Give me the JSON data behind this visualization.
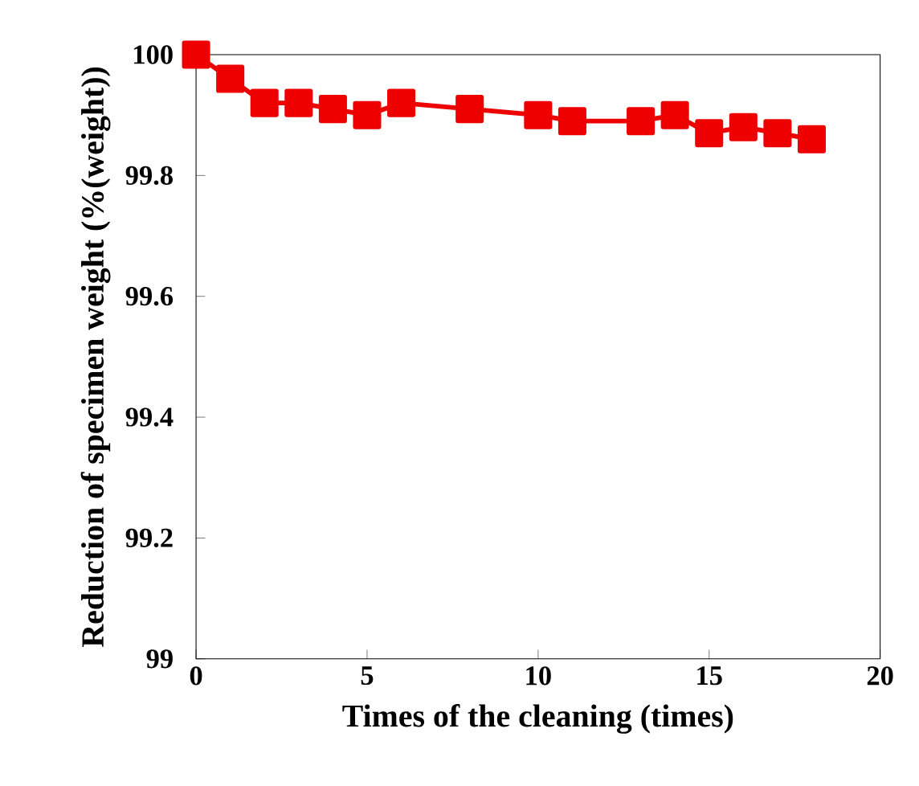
{
  "chart_data": {
    "type": "line",
    "xlabel": "Times of the cleaning (times)",
    "ylabel": "Reduction of specimen weight (%(weight))",
    "x": [
      0,
      1,
      2,
      3,
      4,
      5,
      6,
      8,
      10,
      11,
      13,
      14,
      15,
      16,
      17,
      18
    ],
    "series": [
      {
        "color": "#ee0000",
        "values": [
          100.0,
          99.96,
          99.92,
          99.92,
          99.91,
          99.9,
          99.92,
          99.91,
          99.9,
          99.89,
          99.89,
          99.9,
          99.87,
          99.88,
          99.87,
          99.86
        ]
      }
    ],
    "xlim": [
      0,
      20
    ],
    "ylim": [
      99,
      100
    ],
    "xticks": [
      0,
      5,
      10,
      15,
      20
    ],
    "yticks": [
      99,
      99.2,
      99.4,
      99.6,
      99.8,
      100
    ],
    "marker": "square",
    "grid": false
  }
}
